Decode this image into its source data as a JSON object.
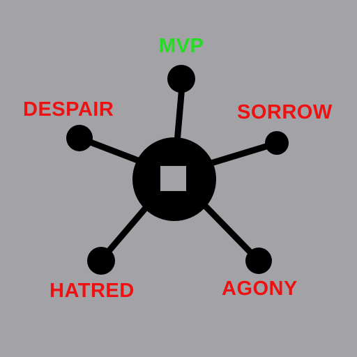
{
  "colors": {
    "background": "#a3a2a7",
    "hub": "#000000",
    "highlight_label": "#22dd22",
    "label": "#ee1111"
  },
  "hub": {
    "icon": "square-ring-hub"
  },
  "nodes": [
    {
      "id": "mvp",
      "label": "MVP",
      "color": "#22dd22"
    },
    {
      "id": "despair",
      "label": "DESPAIR",
      "color": "#ee1111"
    },
    {
      "id": "sorrow",
      "label": "SORROW",
      "color": "#ee1111"
    },
    {
      "id": "hatred",
      "label": "HATRED",
      "color": "#ee1111"
    },
    {
      "id": "agony",
      "label": "AGONY",
      "color": "#ee1111"
    }
  ]
}
